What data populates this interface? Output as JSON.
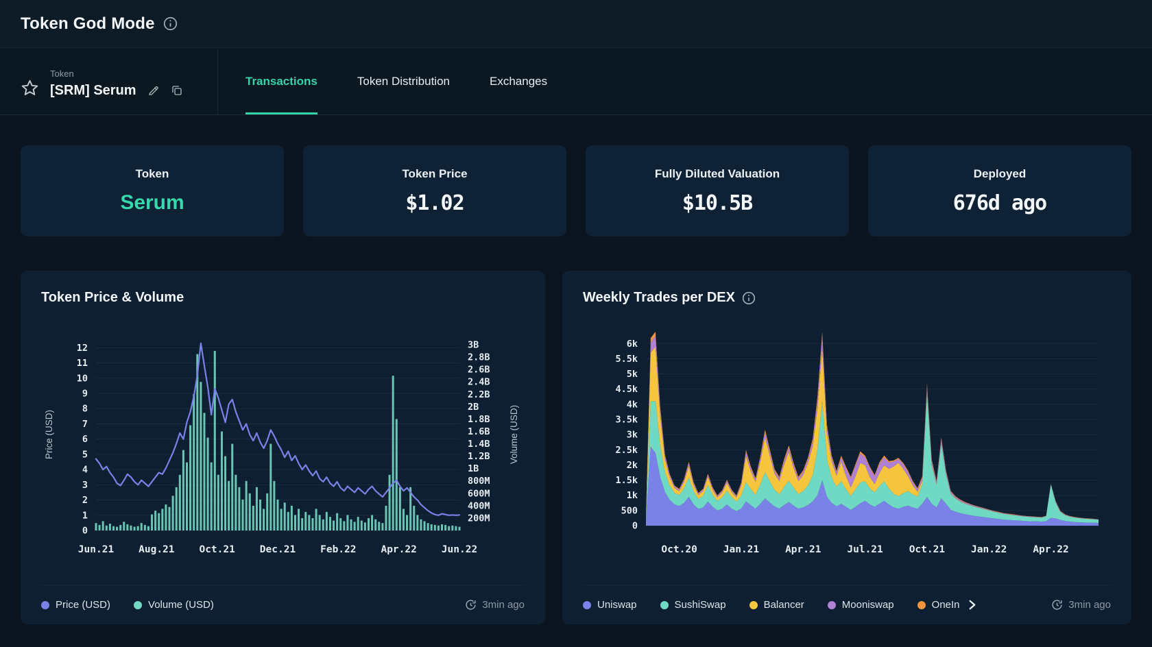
{
  "header": {
    "title": "Token God Mode"
  },
  "token_selector": {
    "label": "Token",
    "value": "[SRM] Serum"
  },
  "tabs": [
    {
      "label": "Transactions",
      "active": true
    },
    {
      "label": "Token Distribution",
      "active": false
    },
    {
      "label": "Exchanges",
      "active": false
    }
  ],
  "stats": [
    {
      "label": "Token",
      "value": "Serum",
      "accent": true
    },
    {
      "label": "Token Price",
      "value": "$1.02",
      "accent": false
    },
    {
      "label": "Fully Diluted Valuation",
      "value": "$10.5B",
      "accent": false
    },
    {
      "label": "Deployed",
      "value": "676d ago",
      "accent": false
    }
  ],
  "charts": {
    "left": {
      "title": "Token Price & Volume",
      "updated": "3min ago"
    },
    "right": {
      "title": "Weekly Trades per DEX",
      "updated": "3min ago",
      "legend_overflow": true
    }
  },
  "colors": {
    "accent_teal": "#35d3a9",
    "price_line": "#7a82e8",
    "volume_bar": "#74d7c2",
    "uniswap": "#7a82e8",
    "sushiswap": "#6fd9c3",
    "balancer": "#f5c53d",
    "mooniswap": "#b07fd6",
    "oneinch": "#f0923e",
    "grid": "#1a2c3d",
    "tick_text": "#e6edf2",
    "axis_label": "#b9c5ce"
  },
  "chart_data": [
    {
      "type": "line",
      "subtype": "line+bar-combo",
      "title": "Token Price & Volume",
      "x_tick_labels": [
        "Jun.21",
        "Aug.21",
        "Oct.21",
        "Dec.21",
        "Feb.22",
        "Apr.22",
        "Jun.22"
      ],
      "left_axis": {
        "label": "Price (USD)",
        "ticks": [
          12,
          11,
          10,
          9,
          8,
          7,
          6,
          5,
          4,
          3,
          2,
          1,
          0
        ],
        "max": 12.6
      },
      "right_axis": {
        "label": "Volume (USD)",
        "tick_values_millions": [
          3000,
          2800,
          2600,
          2400,
          2200,
          2000,
          1800,
          1600,
          1400,
          1200,
          1000,
          800,
          600,
          400,
          200
        ],
        "tick_labels": [
          "3B",
          "2.8B",
          "2.6B",
          "2.4B",
          "2.2B",
          "2B",
          "1.8B",
          "1.6B",
          "1.4B",
          "1.2B",
          "1B",
          "800M",
          "600M",
          "400M",
          "200M"
        ],
        "max_millions": 3100
      },
      "series": [
        {
          "name": "Price (USD)",
          "kind": "line",
          "axis": "left",
          "color_key": "price_line",
          "values": [
            4.7,
            4.4,
            4.0,
            4.2,
            3.8,
            3.5,
            3.1,
            2.95,
            3.3,
            3.7,
            3.5,
            3.2,
            3.0,
            3.3,
            3.1,
            2.9,
            3.2,
            3.5,
            3.8,
            3.7,
            4.1,
            4.6,
            5.1,
            5.7,
            6.4,
            6.0,
            7.1,
            7.8,
            8.8,
            10.2,
            12.3,
            10.8,
            9.4,
            7.6,
            9.3,
            8.7,
            7.9,
            7.1,
            8.3,
            8.6,
            7.8,
            7.2,
            6.6,
            7.0,
            6.3,
            5.9,
            6.4,
            5.8,
            5.4,
            5.9,
            6.6,
            6.2,
            5.7,
            5.3,
            4.8,
            5.2,
            4.6,
            4.9,
            4.4,
            4.0,
            4.3,
            3.9,
            3.6,
            3.9,
            3.4,
            3.2,
            3.5,
            3.1,
            2.9,
            3.2,
            2.8,
            2.6,
            2.9,
            2.7,
            2.5,
            2.8,
            2.6,
            2.4,
            2.7,
            2.9,
            2.6,
            2.4,
            2.2,
            2.5,
            2.8,
            3.1,
            3.3,
            2.9,
            2.6,
            2.8,
            2.5,
            2.2,
            2.0,
            1.7,
            1.5,
            1.3,
            1.15,
            1.05,
            1.0,
            1.1,
            1.05,
            1.0,
            1.02,
            1.0,
            1.02
          ]
        },
        {
          "name": "Volume (USD)",
          "kind": "bar",
          "axis": "right",
          "color_key": "volume_bar",
          "values_usd_millions": [
            120,
            90,
            150,
            80,
            110,
            70,
            60,
            90,
            140,
            100,
            80,
            60,
            70,
            120,
            90,
            70,
            260,
            320,
            280,
            350,
            420,
            380,
            560,
            700,
            900,
            1300,
            1100,
            1700,
            2200,
            2850,
            2400,
            1900,
            1500,
            1100,
            2900,
            900,
            1600,
            1200,
            800,
            1400,
            900,
            700,
            500,
            800,
            600,
            400,
            700,
            500,
            350,
            600,
            1400,
            800,
            500,
            350,
            450,
            300,
            400,
            250,
            350,
            200,
            300,
            250,
            200,
            350,
            250,
            180,
            300,
            220,
            160,
            280,
            200,
            150,
            250,
            180,
            140,
            220,
            160,
            130,
            200,
            250,
            180,
            140,
            120,
            400,
            900,
            2500,
            1800,
            700,
            350,
            250,
            700,
            400,
            250,
            180,
            150,
            120,
            100,
            90,
            80,
            100,
            90,
            70,
            80,
            70,
            60
          ]
        }
      ],
      "legend": [
        "Price (USD)",
        "Volume (USD)"
      ],
      "updated": "3min ago"
    },
    {
      "type": "area",
      "stacked": true,
      "title": "Weekly Trades per DEX",
      "x_tick_labels": [
        "Oct.20",
        "Jan.21",
        "Apr.21",
        "Jul.21",
        "Oct.21",
        "Jan.22",
        "Apr.22"
      ],
      "x_tick_week_index": [
        7,
        20,
        33,
        46,
        59,
        72,
        85
      ],
      "weeks_total": 96,
      "y_axis": {
        "tick_values": [
          6000,
          5500,
          5000,
          4500,
          4000,
          3500,
          3000,
          2500,
          2000,
          1500,
          1000,
          500,
          0
        ],
        "tick_labels": [
          "6k",
          "5.5k",
          "5k",
          "4.5k",
          "4k",
          "3.5k",
          "3k",
          "2.5k",
          "2k",
          "1.5k",
          "1k",
          "500",
          "0"
        ],
        "max": 6300
      },
      "series": [
        {
          "name": "Uniswap",
          "color_key": "uniswap",
          "values": [
            200,
            2600,
            2400,
            1600,
            1100,
            850,
            700,
            650,
            750,
            950,
            700,
            550,
            600,
            800,
            620,
            500,
            560,
            700,
            560,
            480,
            560,
            800,
            680,
            560,
            720,
            900,
            760,
            640,
            560,
            680,
            780,
            660,
            560,
            600,
            680,
            800,
            1000,
            1500,
            950,
            750,
            640,
            720,
            620,
            520,
            620,
            740,
            820,
            700,
            620,
            720,
            820,
            700,
            600,
            560,
            620,
            660,
            600,
            560,
            720,
            950,
            720,
            600,
            900,
            720,
            520,
            460,
            410,
            380,
            350,
            320,
            300,
            280,
            260,
            240,
            220,
            200,
            190,
            180,
            170,
            160,
            150,
            145,
            140,
            135,
            150,
            260,
            240,
            190,
            155,
            135,
            120,
            110,
            105,
            100,
            95,
            90
          ]
        },
        {
          "name": "SushiSwap",
          "color_key": "sushiswap",
          "values": [
            80,
            1500,
            1700,
            1050,
            640,
            480,
            380,
            360,
            480,
            640,
            430,
            330,
            380,
            540,
            400,
            320,
            370,
            450,
            380,
            320,
            430,
            640,
            530,
            450,
            640,
            860,
            700,
            540,
            480,
            590,
            700,
            590,
            480,
            540,
            640,
            860,
            1500,
            2600,
            1250,
            840,
            640,
            740,
            580,
            470,
            580,
            690,
            640,
            530,
            480,
            580,
            640,
            530,
            450,
            410,
            450,
            480,
            430,
            400,
            640,
            3400,
            1250,
            740,
            1800,
            950,
            530,
            430,
            380,
            340,
            320,
            300,
            280,
            260,
            240,
            220,
            205,
            190,
            180,
            170,
            160,
            150,
            145,
            140,
            135,
            130,
            160,
            1100,
            520,
            260,
            190,
            160,
            145,
            135,
            125,
            120,
            112,
            106
          ]
        },
        {
          "name": "Balancer",
          "color_key": "balancer",
          "values": [
            40,
            1600,
            1800,
            950,
            430,
            260,
            160,
            130,
            210,
            370,
            210,
            130,
            160,
            260,
            160,
            110,
            160,
            260,
            160,
            130,
            320,
            850,
            590,
            430,
            740,
            1150,
            850,
            530,
            430,
            740,
            950,
            640,
            430,
            530,
            740,
            950,
            1350,
            1750,
            850,
            530,
            370,
            640,
            430,
            270,
            430,
            640,
            530,
            370,
            270,
            430,
            530,
            640,
            900,
            1100,
            800,
            500,
            300,
            160,
            110,
            80,
            50,
            30,
            20,
            15,
            12,
            10,
            10,
            10,
            8,
            8,
            8,
            8,
            6,
            6,
            6,
            6,
            5,
            5,
            5,
            5,
            5,
            5,
            5,
            5,
            5,
            5,
            5,
            5,
            5,
            5,
            5,
            5,
            5,
            5,
            5,
            5
          ]
        },
        {
          "name": "Mooniswap",
          "color_key": "mooniswap",
          "values": [
            15,
            320,
            360,
            210,
            110,
            70,
            50,
            45,
            65,
            90,
            60,
            40,
            45,
            65,
            50,
            40,
            45,
            60,
            50,
            40,
            65,
            130,
            95,
            75,
            110,
            160,
            130,
            95,
            85,
            115,
            135,
            105,
            85,
            95,
            115,
            160,
            260,
            360,
            185,
            125,
            105,
            135,
            250,
            310,
            350,
            310,
            260,
            300,
            260,
            300,
            260,
            210,
            160,
            130,
            155,
            135,
            105,
            85,
            105,
            160,
            105,
            75,
            125,
            85,
            55,
            45,
            38,
            33,
            28,
            24,
            22,
            20,
            18,
            17,
            16,
            15,
            14,
            13,
            12,
            11,
            10,
            10,
            9,
            9,
            9,
            12,
            30,
            20,
            14,
            11,
            10,
            9,
            8,
            8,
            7,
            7
          ]
        },
        {
          "name": "OneIn",
          "color_key": "oneinch",
          "values": [
            10,
            160,
            190,
            110,
            60,
            40,
            30,
            28,
            38,
            55,
            38,
            28,
            30,
            45,
            34,
            26,
            30,
            40,
            34,
            26,
            40,
            75,
            60,
            48,
            65,
            95,
            75,
            58,
            50,
            68,
            80,
            64,
            50,
            58,
            68,
            90,
            130,
            170,
            95,
            64,
            50,
            70,
            55,
            42,
            55,
            70,
            60,
            48,
            42,
            55,
            62,
            50,
            42,
            36,
            42,
            46,
            40,
            34,
            46,
            90,
            55,
            36,
            60,
            42,
            26,
            22,
            19,
            17,
            15,
            13,
            12,
            11,
            10,
            10,
            9,
            9,
            8,
            8,
            7,
            7,
            7,
            6,
            6,
            6,
            6,
            8,
            20,
            13,
            9,
            8,
            7,
            7,
            6,
            6,
            6,
            5
          ]
        }
      ],
      "legend": [
        "Uniswap",
        "SushiSwap",
        "Balancer",
        "Mooniswap",
        "OneIn"
      ],
      "updated": "3min ago"
    }
  ]
}
